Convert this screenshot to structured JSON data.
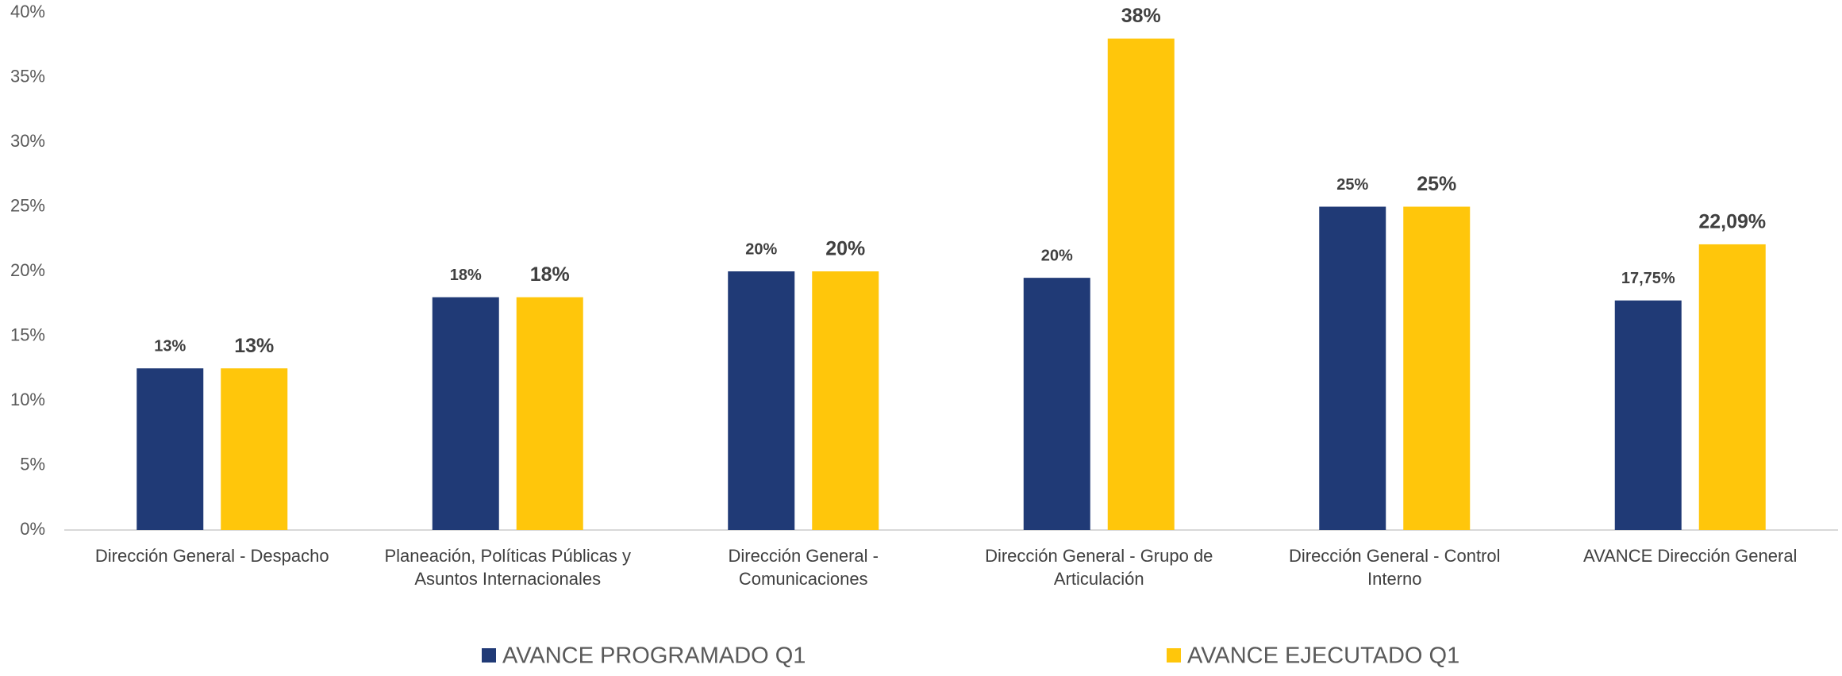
{
  "chart_data": {
    "type": "bar",
    "categories": [
      "Dirección General - Despacho",
      "Planeación, Políticas Públicas y Asuntos Internacionales",
      "Dirección General - Comunicaciones",
      "Dirección General - Grupo de Articulación",
      "Dirección General - Control Interno",
      "AVANCE Dirección General"
    ],
    "series": [
      {
        "name": "AVANCE PROGRAMADO Q1",
        "color": "#203a76",
        "values": [
          12.5,
          18,
          20,
          19.5,
          25,
          17.75
        ],
        "value_labels": [
          "13%",
          "18%",
          "20%",
          "20%",
          "25%",
          "17,75%"
        ]
      },
      {
        "name": "AVANCE EJECUTADO Q1",
        "color": "#ffc60b",
        "values": [
          12.5,
          18,
          20,
          38,
          25,
          22.09
        ],
        "value_labels": [
          "13%",
          "18%",
          "20%",
          "38%",
          "25%",
          "22,09%"
        ]
      }
    ],
    "ylim": [
      0,
      40
    ],
    "yticks": [
      {
        "value": 0,
        "label": "0%"
      },
      {
        "value": 5,
        "label": "5%"
      },
      {
        "value": 10,
        "label": "10%"
      },
      {
        "value": 15,
        "label": "15%"
      },
      {
        "value": 20,
        "label": "20%"
      },
      {
        "value": 25,
        "label": "25%"
      },
      {
        "value": 30,
        "label": "30%"
      },
      {
        "value": 35,
        "label": "35%"
      },
      {
        "value": 40,
        "label": "40%"
      }
    ],
    "grid": false
  }
}
